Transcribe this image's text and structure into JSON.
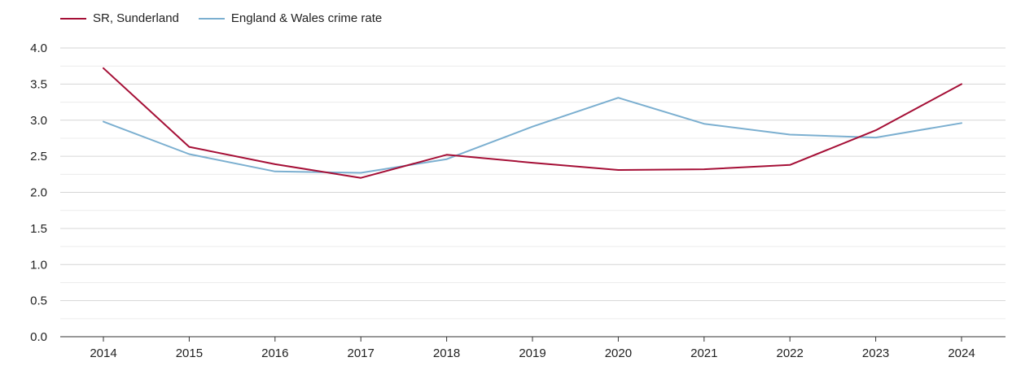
{
  "chart_data": {
    "type": "line",
    "x": [
      "2014",
      "2015",
      "2016",
      "2017",
      "2018",
      "2019",
      "2020",
      "2021",
      "2022",
      "2023",
      "2024"
    ],
    "ylim": [
      0,
      4
    ],
    "yticks": [
      "0.0",
      "0.5",
      "1.0",
      "1.5",
      "2.0",
      "2.5",
      "3.0",
      "3.5",
      "4.0"
    ],
    "grid": true,
    "legend_position": "top-left",
    "series": [
      {
        "name": "SR, Sunderland",
        "color": "#a50f36",
        "values": [
          3.72,
          2.63,
          2.39,
          2.2,
          2.52,
          2.41,
          2.31,
          2.32,
          2.38,
          2.86,
          3.5
        ]
      },
      {
        "name": "England & Wales crime rate",
        "color": "#7bafd0",
        "values": [
          2.98,
          2.53,
          2.29,
          2.27,
          2.46,
          2.91,
          3.31,
          2.95,
          2.8,
          2.76,
          2.96
        ]
      }
    ]
  }
}
